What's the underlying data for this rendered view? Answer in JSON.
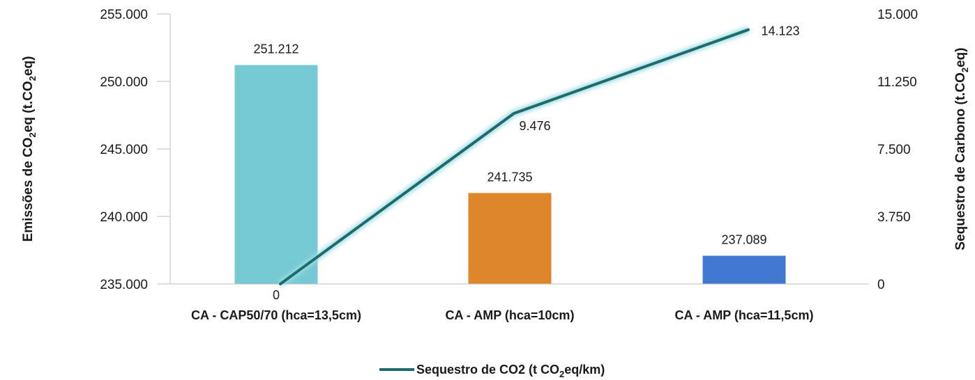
{
  "chart_data": {
    "type": "bar",
    "categories": [
      "CA - CAP50/70 (hca=13,5cm)",
      "CA - AMP (hca=10cm)",
      "CA - AMP (hca=11,5cm)"
    ],
    "series": [
      {
        "type": "bar",
        "axis": "left",
        "values": [
          251212,
          241735,
          237089
        ],
        "labels": [
          "251.212",
          "241.735",
          "237.089"
        ],
        "colors": [
          "#76c9d3",
          "#dd872a",
          "#4279d0"
        ]
      },
      {
        "type": "line",
        "axis": "right",
        "name": "Sequestro de CO2 (t CO₂eq/km)",
        "values": [
          0,
          9476,
          14123
        ],
        "labels": [
          "0",
          "9.476",
          "14.123"
        ],
        "color": "#1e6b6e"
      }
    ],
    "y_left": {
      "label_parts": [
        "Emissões de CO",
        "2",
        "eq (t.CO",
        "2",
        "eq)"
      ],
      "ylim": [
        235000,
        255000
      ],
      "ticks": [
        "235.000",
        "240.000",
        "245.000",
        "250.000",
        "255.000"
      ]
    },
    "y_right": {
      "label_parts": [
        "Sequestro de Carbono (t.CO",
        "2",
        "eq)"
      ],
      "ylim": [
        0,
        15000
      ],
      "ticks": [
        "0",
        "3.750",
        "7.500",
        "11.250",
        "15.000"
      ]
    },
    "legend": {
      "position": "bottom",
      "label_parts": [
        "Sequestro de CO2 (t CO",
        "2",
        "eq/km)"
      ]
    },
    "grid": false
  }
}
